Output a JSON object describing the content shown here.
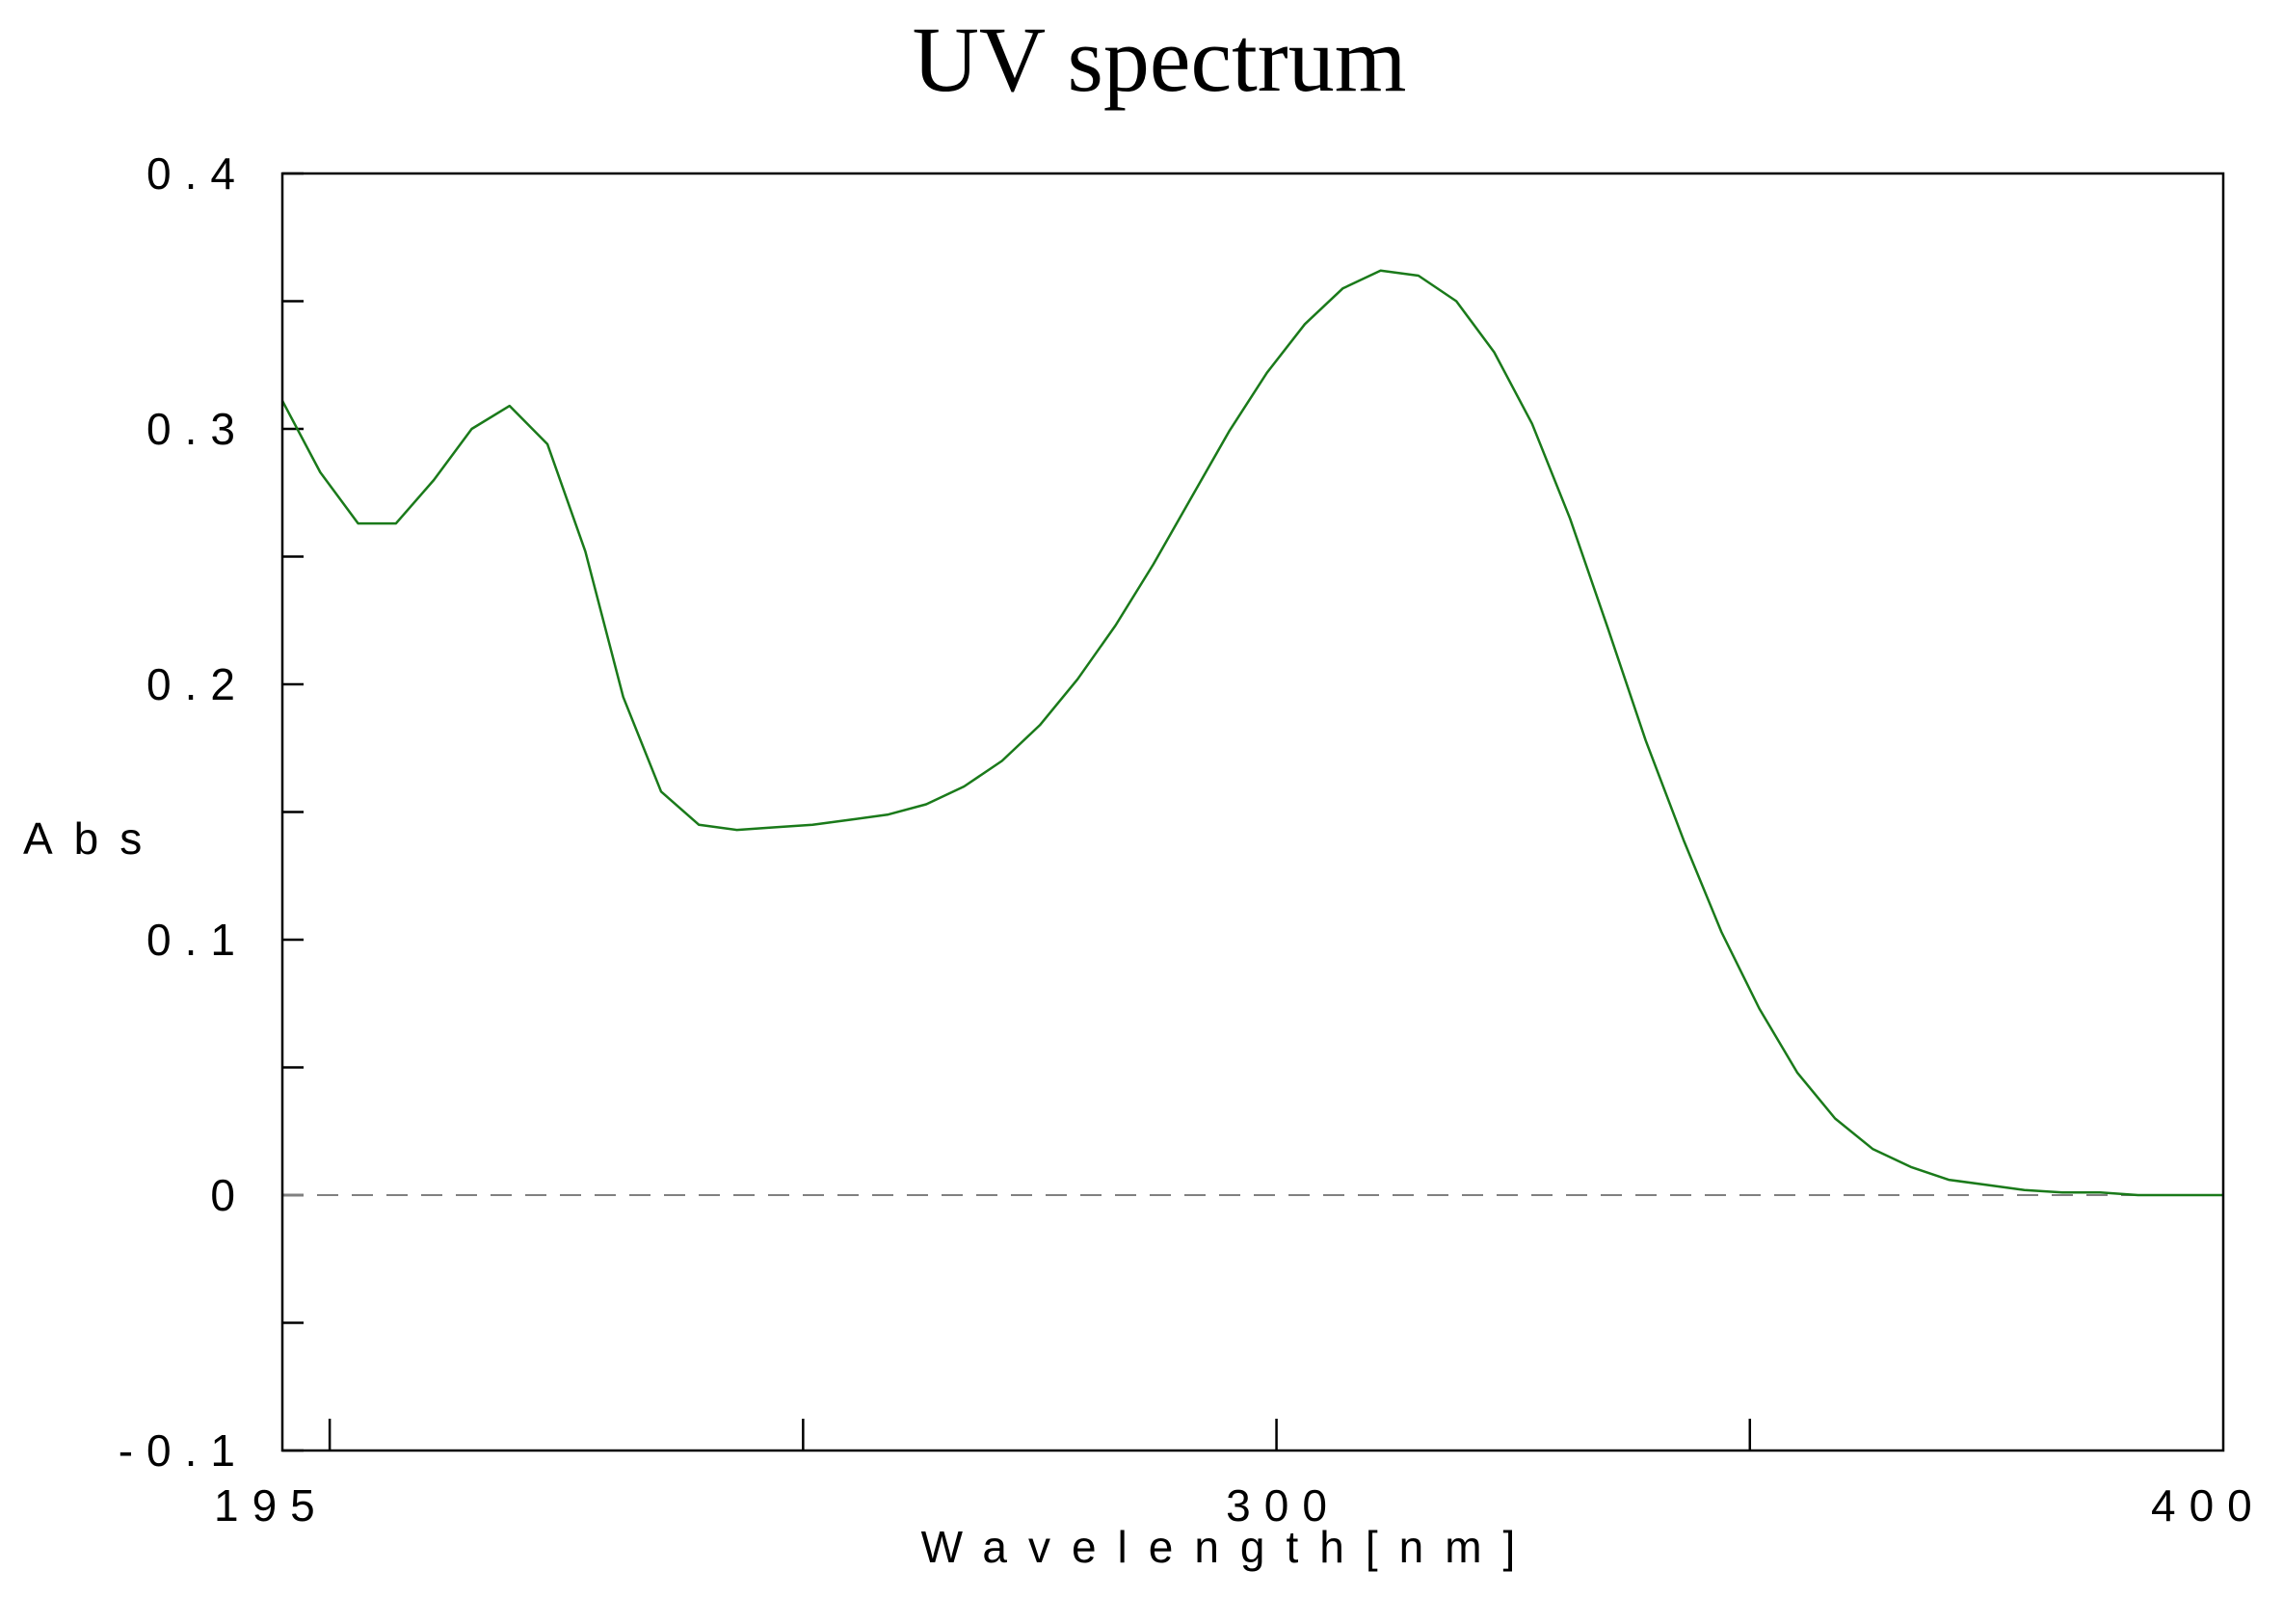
{
  "chart_data": {
    "type": "line",
    "title": "UV spectrum",
    "xlabel": "Wavelength[nm]",
    "ylabel": "Abs",
    "xlim": [
      195,
      400
    ],
    "ylim": [
      -0.1,
      0.4
    ],
    "x_ticks": [
      {
        "value": 200,
        "label": ""
      },
      {
        "value": 250,
        "label": ""
      },
      {
        "value": 300,
        "label": "300"
      },
      {
        "value": 350,
        "label": ""
      }
    ],
    "x_edge_labels": {
      "left": "195",
      "right": "400"
    },
    "y_ticks": [
      {
        "value": 0.4,
        "label": "0.4"
      },
      {
        "value": 0.35,
        "label": ""
      },
      {
        "value": 0.3,
        "label": "0.3"
      },
      {
        "value": 0.25,
        "label": ""
      },
      {
        "value": 0.2,
        "label": "0.2"
      },
      {
        "value": 0.15,
        "label": ""
      },
      {
        "value": 0.1,
        "label": "0.1"
      },
      {
        "value": 0.05,
        "label": ""
      },
      {
        "value": 0,
        "label": "0"
      },
      {
        "value": -0.05,
        "label": ""
      },
      {
        "value": -0.1,
        "label": "-0.1"
      }
    ],
    "baseline": {
      "value": 0,
      "style": "dashed",
      "color": "#808080"
    },
    "grid": false,
    "series": [
      {
        "color": "#1a7a1a",
        "x": [
          195,
          199,
          203,
          207,
          211,
          215,
          219,
          223,
          227,
          231,
          235,
          239,
          243,
          247,
          251,
          255,
          259,
          263,
          267,
          271,
          275,
          279,
          283,
          287,
          291,
          295,
          299,
          303,
          307,
          311,
          315,
          319,
          323,
          327,
          331,
          335,
          339,
          343,
          347,
          351,
          355,
          359,
          363,
          367,
          371,
          375,
          379,
          383,
          387,
          391,
          395,
          400
        ],
        "y": [
          0.311,
          0.283,
          0.263,
          0.263,
          0.28,
          0.3,
          0.309,
          0.294,
          0.252,
          0.195,
          0.158,
          0.145,
          0.143,
          0.144,
          0.145,
          0.147,
          0.149,
          0.153,
          0.16,
          0.17,
          0.184,
          0.202,
          0.223,
          0.247,
          0.273,
          0.299,
          0.322,
          0.341,
          0.355,
          0.362,
          0.36,
          0.35,
          0.33,
          0.302,
          0.265,
          0.222,
          0.178,
          0.139,
          0.103,
          0.073,
          0.048,
          0.03,
          0.018,
          0.011,
          0.006,
          0.004,
          0.002,
          0.001,
          0.001,
          0.0,
          0.0,
          0.0
        ]
      }
    ]
  }
}
